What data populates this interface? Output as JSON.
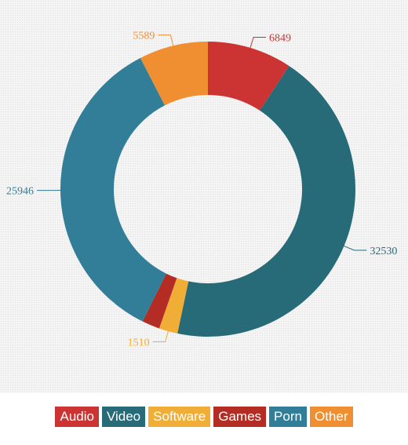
{
  "chart_data": {
    "type": "pie",
    "variant": "donut",
    "categories": [
      "Audio",
      "Video",
      "Software",
      "Games",
      "Porn",
      "Other"
    ],
    "values": [
      6849,
      32530,
      1510,
      1436,
      25946,
      5589
    ],
    "value_labels": [
      "6849",
      "32530",
      "1510",
      "",
      "25946",
      "5589"
    ],
    "colors": [
      "#cc3333",
      "#276b78",
      "#f0ae36",
      "#b32d25",
      "#327e98",
      "#f08f32"
    ],
    "legend_position": "bottom",
    "grid": false
  },
  "legend": {
    "items": [
      {
        "label": "Audio",
        "color": "#cc3333"
      },
      {
        "label": "Video",
        "color": "#276b78"
      },
      {
        "label": "Software",
        "color": "#f0ae36"
      },
      {
        "label": "Games",
        "color": "#b32d25"
      },
      {
        "label": "Porn",
        "color": "#327e98"
      },
      {
        "label": "Other",
        "color": "#f08f32"
      }
    ]
  }
}
